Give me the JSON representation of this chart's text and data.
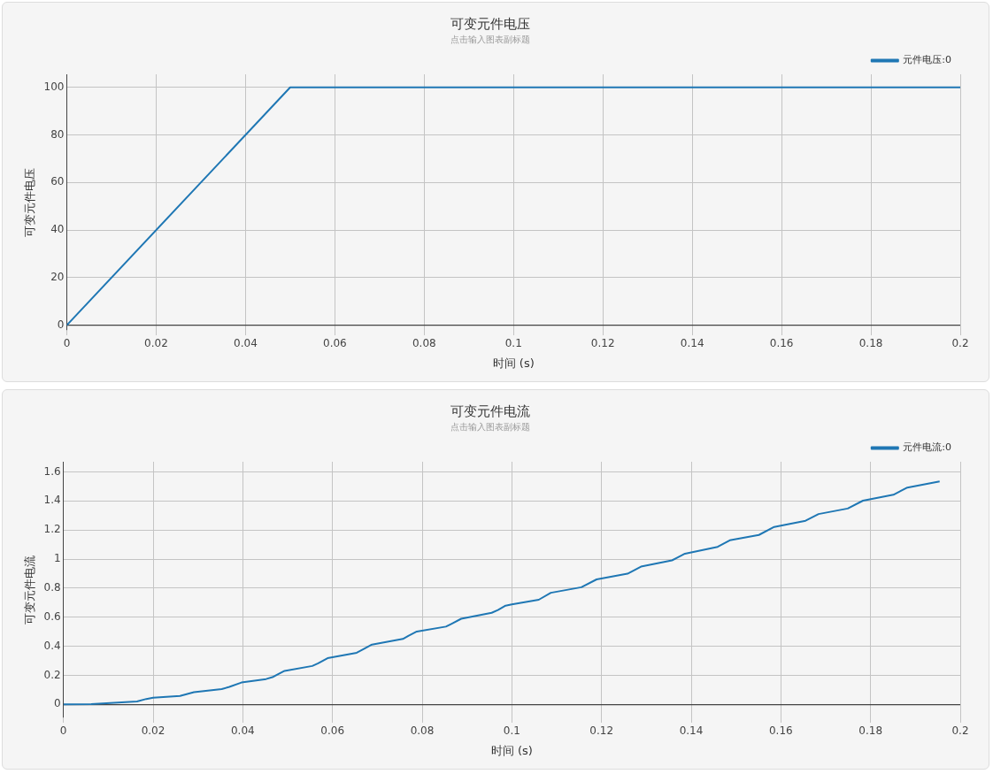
{
  "chart_data": [
    {
      "type": "line",
      "title": "可变元件电压",
      "subtitle": "点击输入图表副标题",
      "xlabel": "时间 (s)",
      "ylabel": "可变元件电压",
      "x": [
        0,
        0.05,
        0.2
      ],
      "xlim": [
        0,
        0.2
      ],
      "xticks": [
        0,
        0.02,
        0.04,
        0.06,
        0.08,
        0.1,
        0.12,
        0.14,
        0.16,
        0.18,
        0.2
      ],
      "ylim": [
        -2,
        105.5
      ],
      "yticks": [
        0,
        20,
        40,
        60,
        80,
        100
      ],
      "grid": true,
      "legend": "top right",
      "marker": "none",
      "line_style": "solid",
      "series": [
        {
          "name": "元件电压:0",
          "color": "#1f77b4",
          "values": [
            0,
            100,
            100
          ]
        }
      ]
    },
    {
      "type": "line",
      "title": "可变元件电流",
      "subtitle": "点击输入图表副标题",
      "xlabel": "时间 (s)",
      "ylabel": "可变元件电流",
      "x": [
        0,
        0.0062,
        0.0164,
        0.0185,
        0.02,
        0.026,
        0.0291,
        0.0353,
        0.037,
        0.0397,
        0.0452,
        0.0466,
        0.0493,
        0.0555,
        0.0568,
        0.0589,
        0.0654,
        0.0668,
        0.0688,
        0.0757,
        0.077,
        0.0788,
        0.0853,
        0.0866,
        0.0887,
        0.0955,
        0.0969,
        0.0986,
        0.1,
        0.106,
        0.1087,
        0.1155,
        0.1189,
        0.1258,
        0.1288,
        0.1357,
        0.1386,
        0.1459,
        0.1486,
        0.1551,
        0.1585,
        0.1655,
        0.1684,
        0.1749,
        0.1783,
        0.1851,
        0.1882,
        0.1954
      ],
      "xlim": [
        0,
        0.2
      ],
      "xticks": [
        0,
        0.02,
        0.04,
        0.06,
        0.08,
        0.1,
        0.12,
        0.14,
        0.16,
        0.18,
        0.2
      ],
      "ylim": [
        -0.09,
        1.67
      ],
      "yticks": [
        0,
        0.2,
        0.4,
        0.6,
        0.8,
        1,
        1.2,
        1.4,
        1.6
      ],
      "grid": true,
      "legend": "top right",
      "marker": "none",
      "line_style": "solid",
      "series": [
        {
          "name": "元件电流:0",
          "color": "#1f77b4",
          "values": [
            0,
            0.002,
            0.02,
            0.037,
            0.045,
            0.058,
            0.084,
            0.105,
            0.12,
            0.15,
            0.174,
            0.187,
            0.23,
            0.264,
            0.282,
            0.318,
            0.355,
            0.378,
            0.411,
            0.45,
            0.473,
            0.501,
            0.535,
            0.555,
            0.589,
            0.63,
            0.649,
            0.679,
            0.688,
            0.72,
            0.768,
            0.806,
            0.86,
            0.899,
            0.948,
            0.991,
            1.037,
            1.084,
            1.129,
            1.166,
            1.221,
            1.264,
            1.31,
            1.348,
            1.402,
            1.443,
            1.492,
            1.535
          ]
        }
      ]
    }
  ]
}
